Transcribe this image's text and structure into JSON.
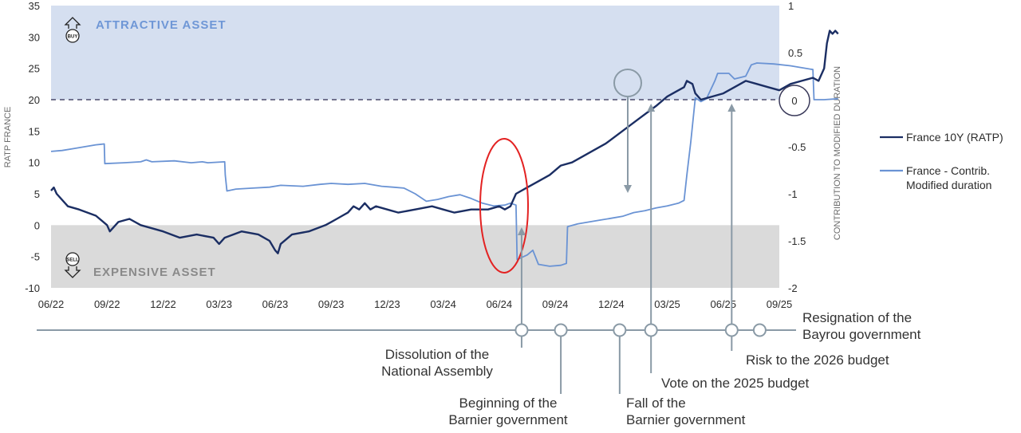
{
  "chart_data": {
    "type": "line",
    "x_ticks": [
      "06/22",
      "09/22",
      "12/22",
      "03/23",
      "06/23",
      "09/23",
      "12/23",
      "03/24",
      "06/24",
      "09/24",
      "12/24",
      "03/25",
      "06/25",
      "09/25"
    ],
    "left_axis": {
      "label": "RATP FRANCE",
      "ticks": [
        "35",
        "30",
        "25",
        "20",
        "15",
        "10",
        "5",
        "0",
        "-5",
        "-10"
      ],
      "range": [
        -10,
        35
      ]
    },
    "right_axis": {
      "label": "CONTRIBUTION TO MODIFIED DURATION",
      "ticks": [
        "1",
        "0.5",
        "0",
        "-0.5",
        "-1",
        "-1.5",
        "-2"
      ],
      "range": [
        -2,
        1
      ]
    },
    "zones": {
      "attractive": {
        "label": "ATTRACTIVE ASSET",
        "icon_text": "BUY",
        "from": 20,
        "to": 35,
        "color": "#d5dff0"
      },
      "expensive": {
        "label": "EXPENSIVE ASSET",
        "icon_text": "SELL",
        "from": -10,
        "to": 0,
        "color": "#dadada"
      }
    },
    "threshold_label": "0",
    "series": [
      {
        "name": "France 10Y (RATP)",
        "axis": "left",
        "color": "#1b2e63",
        "points": [
          [
            0,
            5.5
          ],
          [
            0.05,
            6
          ],
          [
            0.1,
            5
          ],
          [
            0.3,
            3
          ],
          [
            0.5,
            2.5
          ],
          [
            0.8,
            1.5
          ],
          [
            1,
            0
          ],
          [
            1.05,
            -1
          ],
          [
            1.2,
            0.5
          ],
          [
            1.4,
            1
          ],
          [
            1.6,
            0
          ],
          [
            2,
            -1
          ],
          [
            2.3,
            -2
          ],
          [
            2.6,
            -1.5
          ],
          [
            2.9,
            -2
          ],
          [
            3,
            -3
          ],
          [
            3.1,
            -2
          ],
          [
            3.4,
            -1
          ],
          [
            3.7,
            -1.5
          ],
          [
            3.9,
            -2.5
          ],
          [
            4.0,
            -4
          ],
          [
            4.05,
            -4.5
          ],
          [
            4.1,
            -3
          ],
          [
            4.3,
            -1.5
          ],
          [
            4.6,
            -1
          ],
          [
            4.9,
            0
          ],
          [
            5.0,
            0.5
          ],
          [
            5.1,
            1
          ],
          [
            5.2,
            1.5
          ],
          [
            5.3,
            2
          ],
          [
            5.4,
            3
          ],
          [
            5.5,
            2.5
          ],
          [
            5.6,
            3.5
          ],
          [
            5.7,
            2.5
          ],
          [
            5.8,
            3
          ],
          [
            6.0,
            2.5
          ],
          [
            6.2,
            2
          ],
          [
            6.5,
            2.5
          ],
          [
            6.8,
            3
          ],
          [
            7.0,
            2.5
          ],
          [
            7.2,
            2
          ],
          [
            7.5,
            2.5
          ],
          [
            7.8,
            2.5
          ],
          [
            8.0,
            3
          ],
          [
            8.1,
            2.5
          ],
          [
            8.2,
            3
          ],
          [
            8.3,
            5
          ],
          [
            8.5,
            6
          ],
          [
            8.7,
            7
          ],
          [
            8.9,
            8
          ],
          [
            9.1,
            9.5
          ],
          [
            9.3,
            10
          ],
          [
            9.5,
            11
          ],
          [
            9.7,
            12
          ],
          [
            9.9,
            13
          ],
          [
            10.2,
            15
          ],
          [
            10.5,
            17
          ],
          [
            10.8,
            19
          ],
          [
            11.0,
            20.5
          ],
          [
            11.1,
            21
          ],
          [
            11.2,
            21.5
          ],
          [
            11.3,
            22
          ],
          [
            11.35,
            23
          ],
          [
            11.45,
            22.5
          ],
          [
            11.5,
            21
          ],
          [
            11.6,
            20
          ],
          [
            11.8,
            20.5
          ],
          [
            12.0,
            21
          ],
          [
            12.2,
            22
          ],
          [
            12.4,
            23
          ],
          [
            12.6,
            22.5
          ],
          [
            12.8,
            22
          ],
          [
            13.0,
            21.5
          ],
          [
            13.2,
            22.5
          ],
          [
            13.4,
            23
          ],
          [
            13.6,
            23.5
          ],
          [
            13.7,
            23
          ],
          [
            13.8,
            25
          ],
          [
            13.85,
            29
          ],
          [
            13.9,
            31
          ],
          [
            13.95,
            30.5
          ],
          [
            14.0,
            31
          ],
          [
            14.05,
            30.5
          ]
        ]
      },
      {
        "name": "France - Contrib. Modified duration",
        "axis": "right",
        "color": "#6a93d4",
        "points": [
          [
            0,
            -0.55
          ],
          [
            0.2,
            -0.54
          ],
          [
            0.4,
            -0.52
          ],
          [
            0.6,
            -0.5
          ],
          [
            0.8,
            -0.48
          ],
          [
            0.95,
            -0.47
          ],
          [
            0.96,
            -0.68
          ],
          [
            1.3,
            -0.67
          ],
          [
            1.6,
            -0.66
          ],
          [
            1.7,
            -0.64
          ],
          [
            1.8,
            -0.66
          ],
          [
            2.2,
            -0.65
          ],
          [
            2.5,
            -0.67
          ],
          [
            2.7,
            -0.66
          ],
          [
            2.8,
            -0.67
          ],
          [
            3.1,
            -0.66
          ],
          [
            3.11,
            -0.8
          ],
          [
            3.14,
            -0.97
          ],
          [
            3.3,
            -0.95
          ],
          [
            3.6,
            -0.94
          ],
          [
            3.9,
            -0.93
          ],
          [
            4.1,
            -0.91
          ],
          [
            4.5,
            -0.92
          ],
          [
            4.8,
            -0.9
          ],
          [
            5.0,
            -0.89
          ],
          [
            5.3,
            -0.9
          ],
          [
            5.6,
            -0.89
          ],
          [
            5.9,
            -0.92
          ],
          [
            6.1,
            -0.93
          ],
          [
            6.3,
            -0.94
          ],
          [
            6.5,
            -1.0
          ],
          [
            6.7,
            -1.08
          ],
          [
            6.9,
            -1.06
          ],
          [
            7.1,
            -1.03
          ],
          [
            7.3,
            -1.01
          ],
          [
            7.5,
            -1.05
          ],
          [
            7.7,
            -1.1
          ],
          [
            7.9,
            -1.13
          ],
          [
            8.1,
            -1.12
          ],
          [
            8.2,
            -1.1
          ],
          [
            8.3,
            -1.12
          ],
          [
            8.32,
            -1.7
          ],
          [
            8.5,
            -1.65
          ],
          [
            8.6,
            -1.6
          ],
          [
            8.7,
            -1.75
          ],
          [
            8.9,
            -1.77
          ],
          [
            9.1,
            -1.76
          ],
          [
            9.2,
            -1.74
          ],
          [
            9.22,
            -1.35
          ],
          [
            9.4,
            -1.32
          ],
          [
            9.6,
            -1.3
          ],
          [
            9.8,
            -1.28
          ],
          [
            10.0,
            -1.26
          ],
          [
            10.2,
            -1.24
          ],
          [
            10.4,
            -1.2
          ],
          [
            10.6,
            -1.18
          ],
          [
            10.8,
            -1.15
          ],
          [
            11.0,
            -1.13
          ],
          [
            11.2,
            -1.1
          ],
          [
            11.3,
            -1.07
          ],
          [
            11.35,
            -0.8
          ],
          [
            11.42,
            -0.45
          ],
          [
            11.5,
            0.02
          ],
          [
            11.6,
            -0.02
          ],
          [
            11.7,
            0.01
          ],
          [
            11.85,
            0.2
          ],
          [
            11.9,
            0.28
          ],
          [
            12.1,
            0.28
          ],
          [
            12.2,
            0.22
          ],
          [
            12.4,
            0.25
          ],
          [
            12.5,
            0.37
          ],
          [
            12.6,
            0.39
          ],
          [
            12.9,
            0.38
          ],
          [
            13.2,
            0.36
          ],
          [
            13.4,
            0.34
          ],
          [
            13.6,
            0.32
          ],
          [
            13.62,
            0.0
          ],
          [
            13.8,
            0.0
          ],
          [
            14.05,
            0.01
          ]
        ]
      }
    ],
    "legend": [
      {
        "label": "France 10Y (RATP)",
        "color": "#1b2e63"
      },
      {
        "label": [
          "France - Contrib.",
          "Modified duration"
        ],
        "color": "#6a93d4"
      }
    ],
    "events": [
      {
        "label": [
          "Dissolution of the",
          "National Assembly"
        ],
        "x": 8.4
      },
      {
        "label": [
          "Beginning of the",
          "Barnier government"
        ],
        "x": 9.1
      },
      {
        "label": [
          "Fall of the",
          "Barnier government"
        ],
        "x": 10.15
      },
      {
        "label": [
          "Vote on the 2025 budget"
        ],
        "x": 10.71
      },
      {
        "label": [
          "Risk to the 2026 budget"
        ],
        "x": 12.15
      },
      {
        "label": [
          "Resignation of the",
          "Bayrou government"
        ],
        "x": 12.65
      }
    ]
  }
}
